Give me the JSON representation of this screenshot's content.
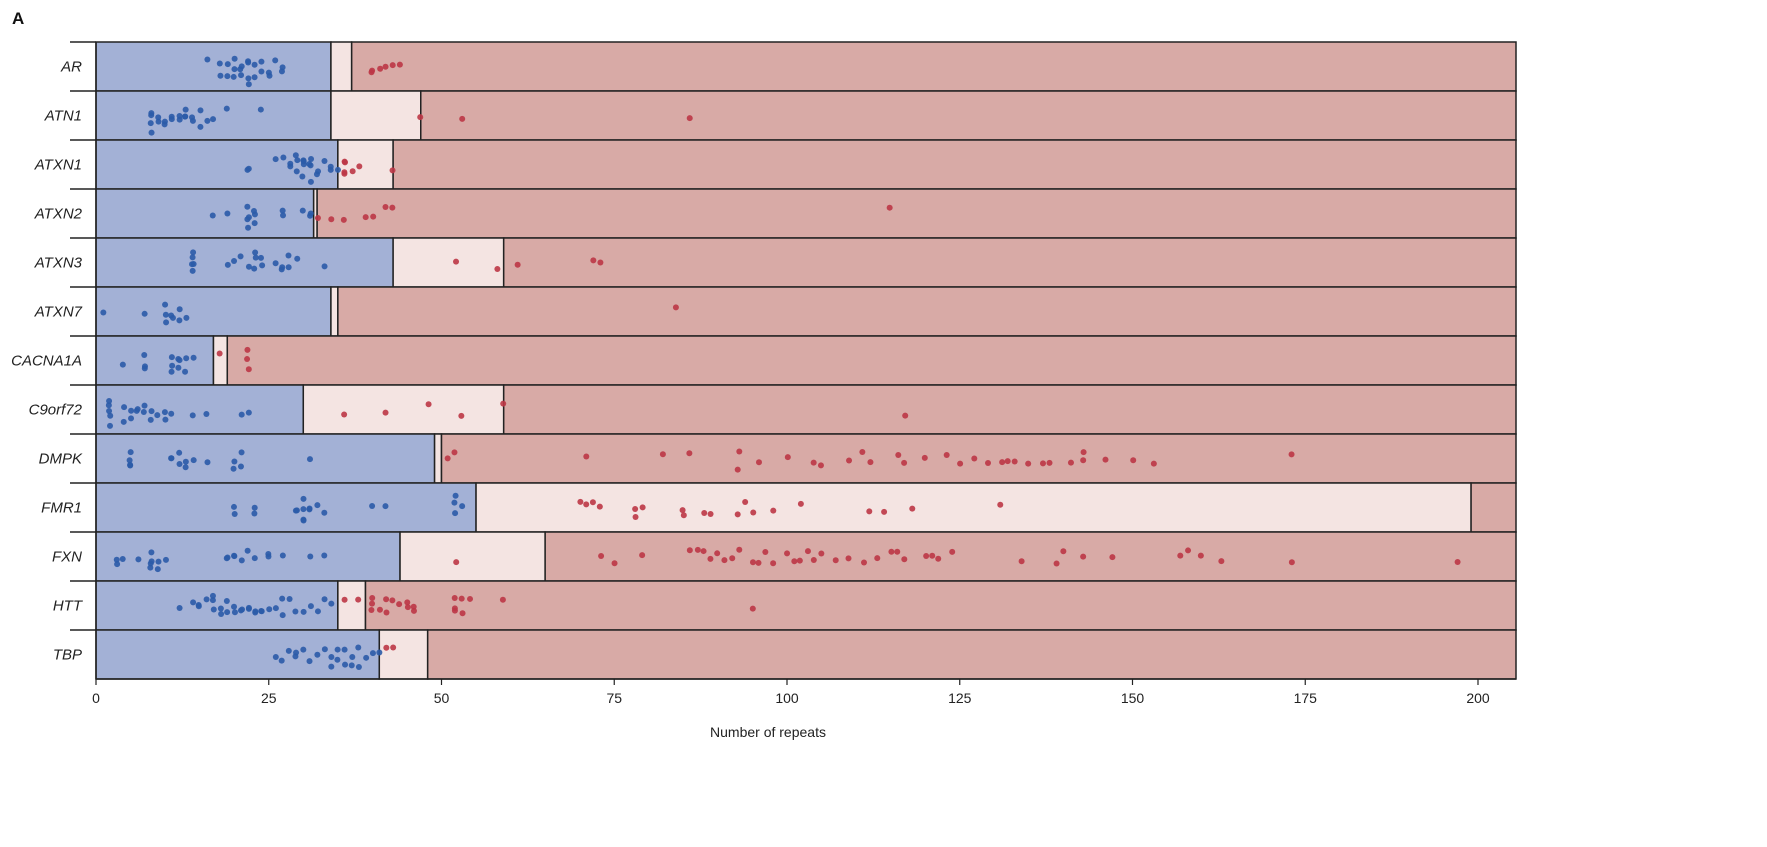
{
  "chart_data": {
    "type": "scatter",
    "panel_label": "A",
    "xlabel": "Number of repeats",
    "xlim": [
      0,
      205.5
    ],
    "xticks": [
      0,
      25,
      50,
      75,
      100,
      125,
      150,
      175,
      200
    ],
    "colors": {
      "normal_range": "#a3b1d6",
      "intermediate_range": "#f4e4e2",
      "pathogenic_range": "#d8aaa6",
      "normal_point": "#2b5ba8",
      "pathogenic_point": "#bd3646"
    },
    "genes": [
      {
        "name": "AR",
        "normal_max": 34,
        "intermediate_max": 37,
        "values": [
          16,
          18,
          18,
          19,
          19,
          20,
          20,
          20,
          21,
          21,
          21,
          22,
          22,
          22,
          22,
          23,
          23,
          24,
          24,
          25,
          25,
          26,
          27,
          27,
          40,
          40,
          41,
          42,
          43,
          44
        ]
      },
      {
        "name": "ATN1",
        "normal_max": 34,
        "intermediate_max": 47,
        "values": [
          8,
          8,
          8,
          8,
          9,
          9,
          10,
          10,
          11,
          11,
          12,
          12,
          13,
          13,
          13,
          14,
          14,
          15,
          15,
          16,
          17,
          19,
          24,
          47,
          53,
          86
        ]
      },
      {
        "name": "ATXN1",
        "normal_max": 35,
        "intermediate_max": 43,
        "values": [
          22,
          22,
          26,
          27,
          28,
          28,
          29,
          29,
          29,
          30,
          30,
          30,
          30,
          31,
          31,
          31,
          31,
          32,
          32,
          33,
          34,
          34,
          35,
          36,
          36,
          36,
          36,
          37,
          38,
          43
        ]
      },
      {
        "name": "ATXN2",
        "normal_max": 31.5,
        "intermediate_max": 32,
        "values": [
          17,
          19,
          22,
          22,
          22,
          22,
          23,
          23,
          23,
          27,
          27,
          30,
          31,
          31,
          32,
          34,
          36,
          39,
          40,
          42,
          43,
          115
        ]
      },
      {
        "name": "ATXN3",
        "normal_max": 43,
        "intermediate_max": 59,
        "values": [
          14,
          14,
          14,
          14,
          14,
          19,
          20,
          21,
          22,
          23,
          23,
          23,
          24,
          24,
          26,
          27,
          27,
          28,
          28,
          29,
          33,
          52,
          58,
          61,
          72,
          73
        ]
      },
      {
        "name": "ATXN7",
        "normal_max": 34,
        "intermediate_max": 35,
        "values": [
          1,
          7,
          10,
          10,
          10,
          11,
          11,
          12,
          12,
          13,
          84
        ]
      },
      {
        "name": "CACNA1A",
        "normal_max": 17,
        "intermediate_max": 19,
        "values": [
          4,
          7,
          7,
          7,
          11,
          11,
          11,
          12,
          12,
          12,
          13,
          13,
          14,
          18,
          22,
          22,
          22
        ]
      },
      {
        "name": "C9orf72",
        "normal_max": 30,
        "intermediate_max": 59,
        "values": [
          2,
          2,
          2,
          2,
          2,
          4,
          4,
          5,
          5,
          6,
          6,
          7,
          7,
          8,
          8,
          9,
          10,
          10,
          11,
          14,
          16,
          21,
          22,
          36,
          42,
          48,
          53,
          59,
          117
        ]
      },
      {
        "name": "DMPK",
        "normal_max": 49,
        "intermediate_max": 50,
        "values": [
          5,
          5,
          5,
          5,
          11,
          11,
          12,
          12,
          13,
          13,
          14,
          16,
          20,
          20,
          21,
          21,
          31,
          51,
          52,
          71,
          82,
          86,
          93,
          93,
          96,
          100,
          104,
          105,
          109,
          111,
          112,
          116,
          117,
          120,
          123,
          125,
          127,
          129,
          131,
          132,
          133,
          135,
          137,
          138,
          141,
          143,
          143,
          146,
          150,
          153,
          173
        ]
      },
      {
        "name": "FMR1",
        "normal_max": 55,
        "intermediate_max": 199,
        "values": [
          20,
          20,
          23,
          23,
          29,
          29,
          30,
          30,
          30,
          30,
          31,
          31,
          32,
          33,
          40,
          42,
          52,
          52,
          52,
          53,
          70,
          71,
          72,
          73,
          78,
          78,
          79,
          85,
          85,
          88,
          89,
          93,
          94,
          95,
          98,
          102,
          112,
          114,
          118,
          131
        ]
      },
      {
        "name": "FXN",
        "normal_max": 44,
        "intermediate_max": 65,
        "values": [
          3,
          3,
          4,
          6,
          8,
          8,
          8,
          8,
          9,
          9,
          10,
          19,
          19,
          20,
          20,
          21,
          22,
          23,
          25,
          25,
          27,
          31,
          33,
          52,
          73,
          75,
          79,
          86,
          87,
          88,
          89,
          90,
          91,
          92,
          93,
          95,
          96,
          97,
          98,
          100,
          101,
          102,
          103,
          104,
          105,
          107,
          109,
          111,
          113,
          115,
          116,
          117,
          120,
          121,
          122,
          124,
          134,
          139,
          140,
          143,
          147,
          157,
          158,
          160,
          163,
          173,
          197
        ]
      },
      {
        "name": "HTT",
        "normal_max": 35,
        "intermediate_max": 39,
        "values": [
          12,
          14,
          15,
          15,
          16,
          17,
          17,
          17,
          18,
          18,
          19,
          19,
          20,
          20,
          21,
          21,
          22,
          22,
          23,
          23,
          24,
          24,
          25,
          26,
          27,
          27,
          28,
          29,
          30,
          31,
          32,
          33,
          34,
          36,
          38,
          40,
          40,
          40,
          41,
          42,
          42,
          43,
          44,
          45,
          45,
          46,
          46,
          52,
          52,
          52,
          53,
          53,
          54,
          59,
          95
        ]
      },
      {
        "name": "TBP",
        "normal_max": 41,
        "intermediate_max": 48,
        "values": [
          26,
          27,
          28,
          29,
          29,
          30,
          31,
          32,
          33,
          34,
          34,
          35,
          35,
          36,
          36,
          37,
          37,
          38,
          38,
          39,
          40,
          41,
          42,
          43
        ]
      }
    ]
  }
}
